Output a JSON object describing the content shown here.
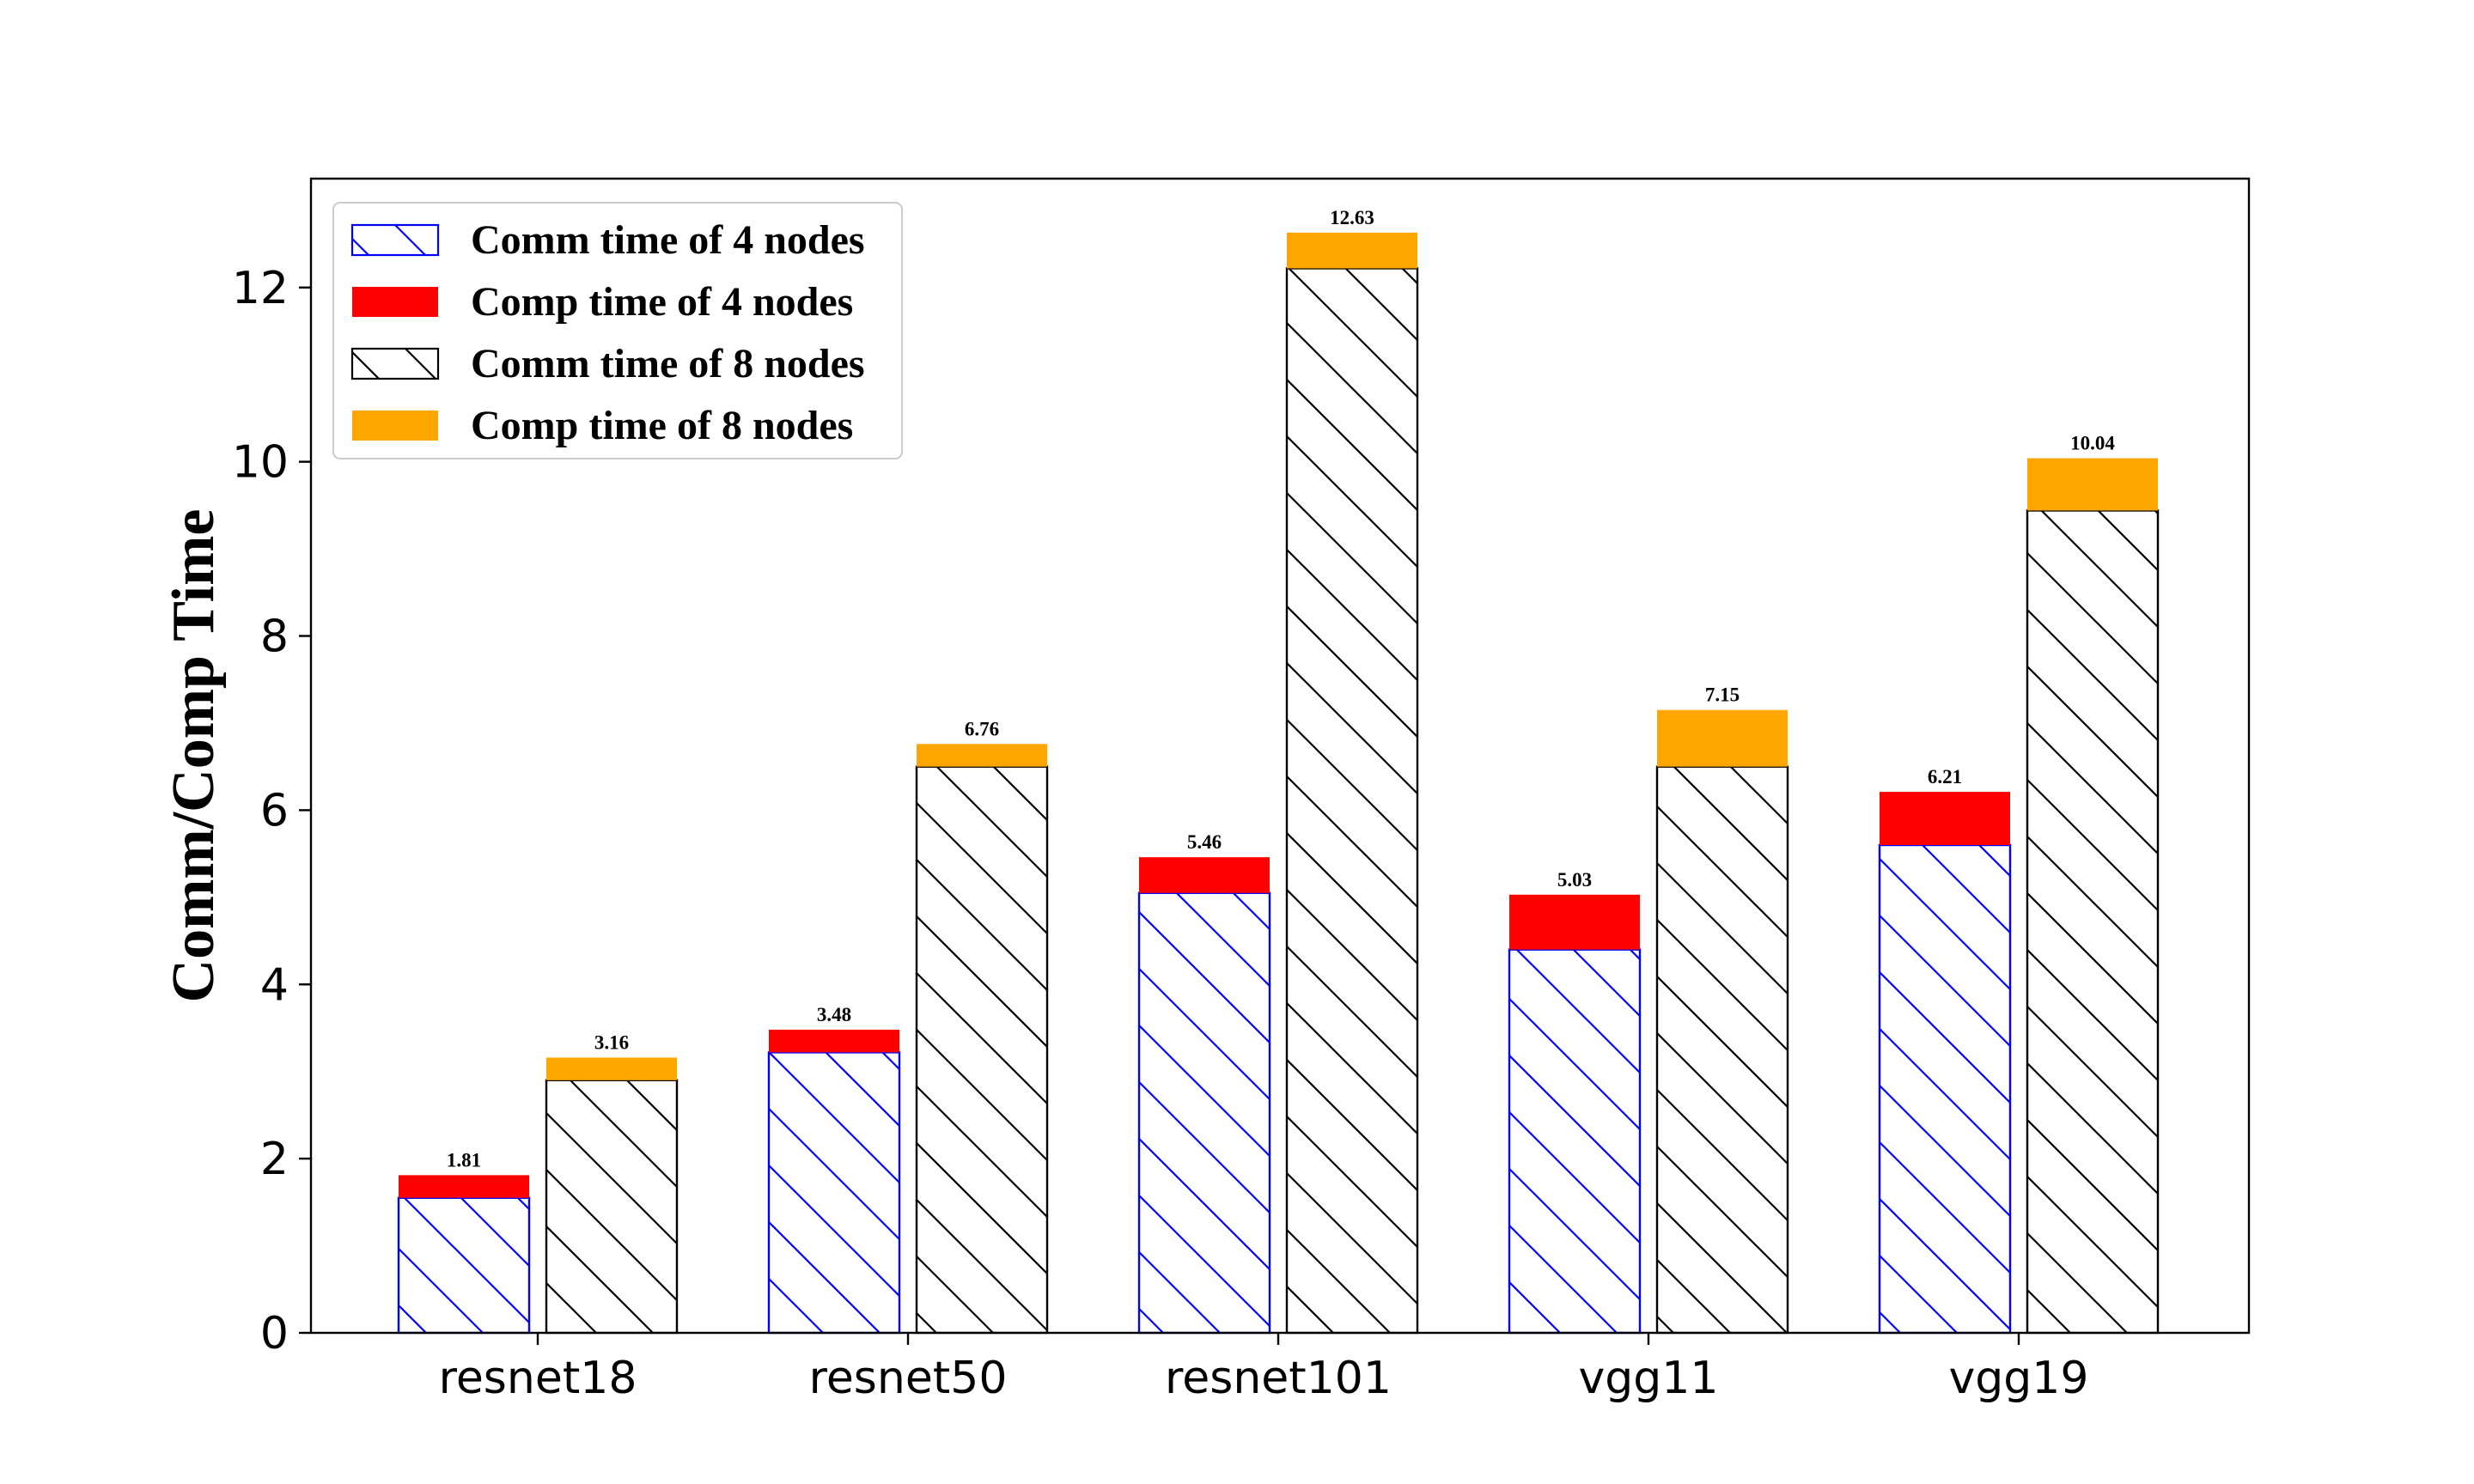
{
  "chart_data": {
    "type": "bar",
    "stacked": true,
    "grouped": true,
    "categories": [
      "resnet18",
      "resnet50",
      "resnet101",
      "vgg11",
      "vgg19"
    ],
    "ylabel": "Comm/Comp Time",
    "xlabel": "",
    "ylim": [
      0,
      13.25
    ],
    "yticks": [
      0,
      2,
      4,
      6,
      8,
      10,
      12
    ],
    "grid": false,
    "legend_position": "top-left",
    "series": [
      {
        "name": "Comm time of 4 nodes",
        "group": "4 nodes",
        "style": "hatch",
        "color": "#0000ff",
        "values": [
          1.55,
          3.22,
          5.05,
          4.4,
          5.6
        ]
      },
      {
        "name": "Comp time of 4 nodes",
        "group": "4 nodes",
        "style": "solid",
        "color": "#ff0000",
        "values": [
          0.26,
          0.26,
          0.41,
          0.63,
          0.61
        ]
      },
      {
        "name": "Comm time of 8 nodes",
        "group": "8 nodes",
        "style": "hatch",
        "color": "#000000",
        "values": [
          2.9,
          6.5,
          12.22,
          6.5,
          9.44
        ]
      },
      {
        "name": "Comp time of 8 nodes",
        "group": "8 nodes",
        "style": "solid",
        "color": "#ffa500",
        "values": [
          0.26,
          0.26,
          0.41,
          0.65,
          0.6
        ]
      }
    ],
    "totals": {
      "4 nodes": [
        "1.81",
        "3.48",
        "5.46",
        "5.03",
        "6.21"
      ],
      "8 nodes": [
        "3.16",
        "6.76",
        "12.63",
        "7.15",
        "10.04"
      ]
    }
  }
}
